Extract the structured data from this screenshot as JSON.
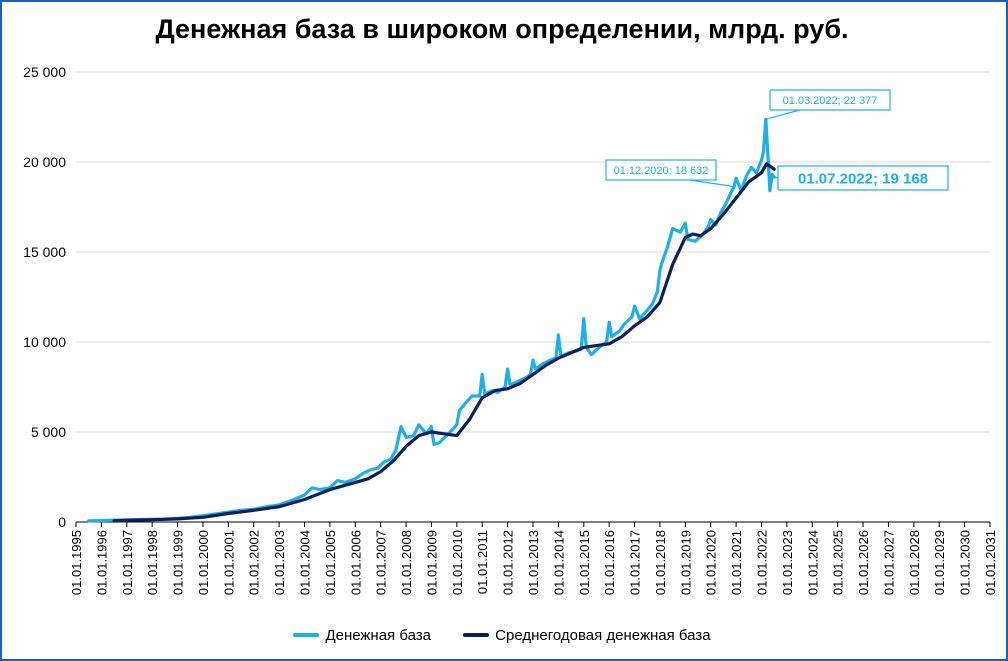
{
  "chart_data": {
    "type": "line",
    "title": "Денежная база в широком определении, млрд. руб.",
    "ylim": [
      0,
      25000
    ],
    "yticks": [
      0,
      5000,
      10000,
      15000,
      20000,
      25000
    ],
    "ytick_labels": [
      "0",
      "5 000",
      "10 000",
      "15 000",
      "20 000",
      "25 000"
    ],
    "xlim_years": [
      1995,
      2031
    ],
    "xtick_labels": [
      "01.01.1995",
      "01.01.1996",
      "01.01.1997",
      "01.01.1998",
      "01.01.1999",
      "01.01.2000",
      "01.01.2001",
      "01.01.2002",
      "01.01.2003",
      "01.01.2004",
      "01.01.2005",
      "01.01.2006",
      "01.01.2007",
      "01.01.2008",
      "01.01.2009",
      "01.01.2010",
      "01.01.2011",
      "01.01.2012",
      "01.01.2013",
      "01.01.2014",
      "01.01.2015",
      "01.01.2016",
      "01.01.2017",
      "01.01.2018",
      "01.01.2019",
      "01.01.2020",
      "01.01.2021",
      "01.01.2022",
      "01.01.2023",
      "01.01.2024",
      "01.01.2025",
      "01.01.2026",
      "01.01.2027",
      "01.01.2028",
      "01.01.2029",
      "01.01.2030",
      "01.01.2031"
    ],
    "grid": true,
    "legend_position": "bottom",
    "series": [
      {
        "name": "Денежная база",
        "color": "#1ab0ea",
        "points": [
          [
            1995.5,
            60
          ],
          [
            1996.0,
            80
          ],
          [
            1996.5,
            100
          ],
          [
            1997.0,
            120
          ],
          [
            1997.5,
            140
          ],
          [
            1998.0,
            150
          ],
          [
            1998.5,
            160
          ],
          [
            1999.0,
            200
          ],
          [
            1999.5,
            260
          ],
          [
            2000.0,
            350
          ],
          [
            2000.5,
            450
          ],
          [
            2001.0,
            550
          ],
          [
            2001.5,
            650
          ],
          [
            2002.0,
            700
          ],
          [
            2002.5,
            850
          ],
          [
            2003.0,
            950
          ],
          [
            2003.5,
            1200
          ],
          [
            2004.0,
            1500
          ],
          [
            2004.3,
            1900
          ],
          [
            2004.6,
            1800
          ],
          [
            2005.0,
            1900
          ],
          [
            2005.3,
            2300
          ],
          [
            2005.6,
            2200
          ],
          [
            2006.0,
            2400
          ],
          [
            2006.3,
            2700
          ],
          [
            2006.6,
            2900
          ],
          [
            2006.9,
            3000
          ],
          [
            2007.1,
            3300
          ],
          [
            2007.4,
            3500
          ],
          [
            2007.6,
            4000
          ],
          [
            2007.8,
            5300
          ],
          [
            2008.0,
            4700
          ],
          [
            2008.3,
            4800
          ],
          [
            2008.5,
            5400
          ],
          [
            2008.8,
            4900
          ],
          [
            2009.0,
            5300
          ],
          [
            2009.1,
            4300
          ],
          [
            2009.3,
            4400
          ],
          [
            2009.6,
            4800
          ],
          [
            2010.0,
            5400
          ],
          [
            2010.1,
            6200
          ],
          [
            2010.4,
            6700
          ],
          [
            2010.6,
            7000
          ],
          [
            2010.9,
            7000
          ],
          [
            2011.0,
            8200
          ],
          [
            2011.1,
            7100
          ],
          [
            2011.4,
            7300
          ],
          [
            2011.6,
            7200
          ],
          [
            2011.9,
            7500
          ],
          [
            2012.0,
            8500
          ],
          [
            2012.1,
            7600
          ],
          [
            2012.4,
            7800
          ],
          [
            2012.7,
            8000
          ],
          [
            2012.9,
            8200
          ],
          [
            2013.0,
            9000
          ],
          [
            2013.1,
            8500
          ],
          [
            2013.4,
            8800
          ],
          [
            2013.7,
            9000
          ],
          [
            2013.9,
            9100
          ],
          [
            2014.0,
            10400
          ],
          [
            2014.1,
            9200
          ],
          [
            2014.4,
            9400
          ],
          [
            2014.7,
            9500
          ],
          [
            2014.9,
            9600
          ],
          [
            2015.0,
            11300
          ],
          [
            2015.1,
            9700
          ],
          [
            2015.3,
            9300
          ],
          [
            2015.6,
            9700
          ],
          [
            2015.9,
            10000
          ],
          [
            2016.0,
            11100
          ],
          [
            2016.1,
            10300
          ],
          [
            2016.4,
            10600
          ],
          [
            2016.6,
            11000
          ],
          [
            2016.9,
            11400
          ],
          [
            2017.0,
            12000
          ],
          [
            2017.2,
            11300
          ],
          [
            2017.4,
            11600
          ],
          [
            2017.7,
            12100
          ],
          [
            2017.9,
            12800
          ],
          [
            2018.0,
            14000
          ],
          [
            2018.1,
            14500
          ],
          [
            2018.3,
            15300
          ],
          [
            2018.5,
            16300
          ],
          [
            2018.8,
            16100
          ],
          [
            2019.0,
            16600
          ],
          [
            2019.1,
            15700
          ],
          [
            2019.4,
            15600
          ],
          [
            2019.7,
            16000
          ],
          [
            2019.9,
            16400
          ],
          [
            2020.0,
            16800
          ],
          [
            2020.2,
            16500
          ],
          [
            2020.4,
            17200
          ],
          [
            2020.6,
            17700
          ],
          [
            2020.8,
            18300
          ],
          [
            2020.92,
            18632
          ],
          [
            2021.0,
            19100
          ],
          [
            2021.2,
            18400
          ],
          [
            2021.4,
            19200
          ],
          [
            2021.6,
            19700
          ],
          [
            2021.8,
            19400
          ],
          [
            2022.0,
            20100
          ],
          [
            2022.08,
            20600
          ],
          [
            2022.17,
            22377
          ],
          [
            2022.25,
            20500
          ],
          [
            2022.33,
            18400
          ],
          [
            2022.42,
            19300
          ],
          [
            2022.5,
            19168
          ]
        ]
      },
      {
        "name": "Среднегодовая денежная база",
        "color": "#0a1f5c",
        "points": [
          [
            1996.5,
            70
          ],
          [
            1997.0,
            90
          ],
          [
            1998.0,
            130
          ],
          [
            1999.0,
            170
          ],
          [
            2000.0,
            260
          ],
          [
            2001.0,
            470
          ],
          [
            2002.0,
            650
          ],
          [
            2003.0,
            850
          ],
          [
            2004.0,
            1250
          ],
          [
            2005.0,
            1800
          ],
          [
            2006.0,
            2200
          ],
          [
            2006.5,
            2400
          ],
          [
            2007.0,
            2800
          ],
          [
            2007.5,
            3400
          ],
          [
            2008.0,
            4200
          ],
          [
            2008.5,
            4800
          ],
          [
            2009.0,
            5000
          ],
          [
            2009.5,
            4900
          ],
          [
            2010.0,
            4800
          ],
          [
            2010.5,
            5700
          ],
          [
            2011.0,
            6900
          ],
          [
            2011.5,
            7300
          ],
          [
            2012.0,
            7400
          ],
          [
            2012.5,
            7700
          ],
          [
            2013.0,
            8200
          ],
          [
            2013.5,
            8700
          ],
          [
            2014.0,
            9100
          ],
          [
            2014.5,
            9400
          ],
          [
            2015.0,
            9700
          ],
          [
            2015.5,
            9800
          ],
          [
            2016.0,
            9900
          ],
          [
            2016.5,
            10300
          ],
          [
            2017.0,
            10900
          ],
          [
            2017.5,
            11400
          ],
          [
            2018.0,
            12200
          ],
          [
            2018.5,
            14300
          ],
          [
            2019.0,
            15800
          ],
          [
            2019.3,
            16000
          ],
          [
            2019.6,
            15900
          ],
          [
            2020.0,
            16300
          ],
          [
            2020.5,
            17100
          ],
          [
            2021.0,
            18000
          ],
          [
            2021.5,
            18900
          ],
          [
            2022.0,
            19400
          ],
          [
            2022.2,
            19900
          ],
          [
            2022.5,
            19600
          ]
        ]
      }
    ],
    "annotations": [
      {
        "label": "01.03.2022;  22 377",
        "x": 2022.17,
        "y": 22377,
        "series": 0
      },
      {
        "label": "01.12.2020;  18 632",
        "x": 2020.92,
        "y": 18632,
        "series": 0
      },
      {
        "label": "01.07.2022;  19 168",
        "x": 2022.5,
        "y": 19168,
        "series": 0
      }
    ]
  }
}
